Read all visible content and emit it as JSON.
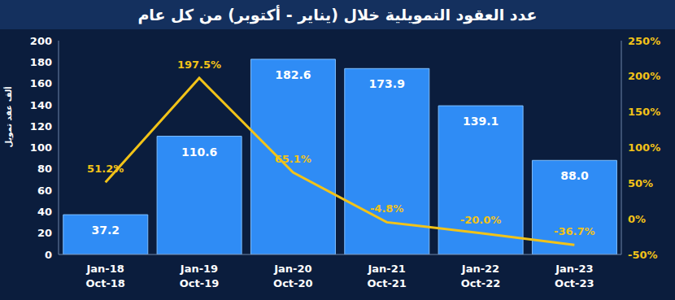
{
  "chart_data": {
    "type": "bar",
    "title": "عدد العقود التمويلية خلال (يناير - أكتوبر) من كل عام",
    "y_label": "ألف عقد تمويل",
    "categories": [
      "Jan-18\nOct-18",
      "Jan-19\nOct-19",
      "Jan-20\nOct-20",
      "Jan-21\nOct-21",
      "Jan-22\nOct-22",
      "Jan-23\nOct-23"
    ],
    "series": [
      {
        "type": "bar",
        "color": "#2f8cf5",
        "values": [
          37.2,
          110.6,
          182.6,
          173.9,
          139.1,
          88.0
        ],
        "value_labels": [
          "37.2",
          "110.6",
          "182.6",
          "173.9",
          "139.1",
          "88.0"
        ],
        "data_labels": true
      },
      {
        "type": "line",
        "axis": "y2",
        "color": "#f2c318",
        "values": [
          51.2,
          197.5,
          65.1,
          -4.8,
          -20.0,
          -36.7
        ],
        "value_labels": [
          "51.2%",
          "197.5%",
          "65.1%",
          "-4.8%",
          "-20.0%",
          "-36.7%"
        ],
        "data_labels": true
      }
    ],
    "ylim": [
      0,
      200
    ],
    "yticks": [
      0,
      20,
      40,
      60,
      80,
      100,
      120,
      140,
      160,
      180,
      200
    ],
    "y2lim": [
      -50,
      250
    ],
    "y2ticks": [
      {
        "value": -50,
        "label": "-50%"
      },
      {
        "value": 0,
        "label": "0%"
      },
      {
        "value": 50,
        "label": "50%"
      },
      {
        "value": 100,
        "label": "100%"
      },
      {
        "value": 150,
        "label": "150%"
      },
      {
        "value": 200,
        "label": "200%"
      },
      {
        "value": 250,
        "label": "250%"
      }
    ],
    "grid": false
  }
}
